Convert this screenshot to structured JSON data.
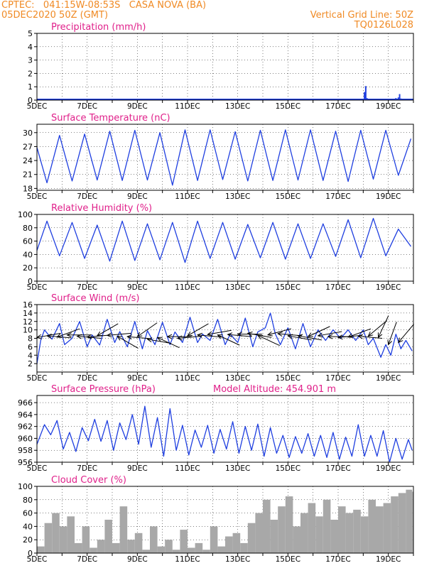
{
  "header": {
    "line1_left": "CPTEC:   041:15W-08:53S   CASA NOVA (BA)",
    "line2_left": "05DEC2020 50Z (GMT)",
    "line1_right": "Vertical Grid Line: 50Z",
    "line2_right": "TQ0126L028"
  },
  "colors": {
    "header": "#f08a24",
    "title": "#e0208a",
    "series": "#1f3fe0",
    "cloud": "#a8a8a8",
    "wind_arrow": "#000000",
    "grid": "#000000"
  },
  "chart_data": [
    {
      "type": "bar",
      "title": "Precipitation (mm/h)",
      "xlabel": "",
      "ylabel": "",
      "ylim": [
        0,
        5
      ],
      "yticks": [
        0,
        1,
        2,
        3,
        4,
        5
      ],
      "xlim": [
        5,
        20
      ],
      "xticks": [
        "5DEC",
        "7DEC",
        "9DEC",
        "11DEC",
        "13DEC",
        "15DEC",
        "17DEC",
        "19DEC"
      ],
      "x": [
        17.2,
        17.5,
        17.8,
        18.0,
        18.05,
        18.1,
        18.15,
        18.8,
        19.1,
        19.3,
        19.4,
        19.45,
        19.5,
        19.55
      ],
      "values": [
        0.03,
        0.05,
        0.05,
        0.08,
        0.6,
        1.05,
        0.15,
        0.05,
        0.1,
        0.15,
        0.2,
        0.45,
        0.12,
        0.05
      ],
      "grid": true
    },
    {
      "type": "line",
      "title": "Surface Temperature (nC)",
      "xlabel": "",
      "ylabel": "",
      "ylim": [
        17.6,
        31.8
      ],
      "yticks": [
        18,
        21,
        24,
        27,
        30
      ],
      "xlim": [
        5,
        20
      ],
      "xticks": [
        "5DEC",
        "7DEC",
        "9DEC",
        "11DEC",
        "13DEC",
        "15DEC",
        "17DEC",
        "19DEC"
      ],
      "x": [
        5.0,
        5.4,
        5.9,
        6.4,
        6.9,
        7.4,
        7.9,
        8.4,
        8.9,
        9.4,
        9.9,
        10.4,
        10.9,
        11.4,
        11.9,
        12.4,
        12.9,
        13.4,
        13.9,
        14.4,
        14.9,
        15.4,
        15.9,
        16.4,
        16.9,
        17.4,
        17.9,
        18.4,
        18.9,
        19.4,
        19.9
      ],
      "values": [
        26.8,
        19.2,
        29.4,
        19.6,
        29.7,
        19.8,
        30.3,
        19.7,
        30.5,
        19.8,
        30.0,
        18.7,
        30.6,
        19.7,
        30.6,
        19.9,
        30.2,
        19.6,
        30.5,
        19.7,
        30.6,
        19.8,
        30.6,
        19.7,
        30.3,
        19.5,
        30.5,
        20.0,
        30.5,
        20.8,
        28.7
      ],
      "grid": true
    },
    {
      "type": "line",
      "title": "Relative Humidity (%)",
      "xlabel": "",
      "ylabel": "",
      "ylim": [
        0,
        100
      ],
      "yticks": [
        0,
        20,
        40,
        60,
        80,
        100
      ],
      "xlim": [
        5,
        20
      ],
      "xticks": [
        "5DEC",
        "7DEC",
        "9DEC",
        "11DEC",
        "13DEC",
        "15DEC",
        "17DEC",
        "19DEC"
      ],
      "x": [
        5.0,
        5.4,
        5.9,
        6.4,
        6.9,
        7.4,
        7.9,
        8.4,
        8.9,
        9.4,
        9.9,
        10.4,
        10.9,
        11.4,
        11.9,
        12.4,
        12.9,
        13.4,
        13.9,
        14.4,
        14.9,
        15.4,
        15.9,
        16.4,
        16.9,
        17.4,
        17.9,
        18.4,
        18.9,
        19.4,
        19.9
      ],
      "values": [
        46,
        90,
        38,
        88,
        34,
        84,
        30,
        90,
        31,
        86,
        32,
        88,
        28,
        90,
        34,
        88,
        33,
        85,
        35,
        88,
        33,
        86,
        34,
        86,
        37,
        92,
        35,
        94,
        38,
        78,
        52
      ],
      "grid": true
    },
    {
      "type": "line",
      "title": "Surface Wind (m/s)",
      "xlabel": "",
      "ylabel": "",
      "ylim": [
        0,
        16
      ],
      "yticks": [
        2,
        4,
        6,
        8,
        10,
        12,
        14,
        16
      ],
      "xlim": [
        5,
        20
      ],
      "xticks": [
        "5DEC",
        "7DEC",
        "9DEC",
        "11DEC",
        "13DEC",
        "15DEC",
        "17DEC",
        "19DEC"
      ],
      "x": [
        5.0,
        5.15,
        5.3,
        5.6,
        5.9,
        6.1,
        6.4,
        6.7,
        7.0,
        7.2,
        7.5,
        7.8,
        8.1,
        8.3,
        8.6,
        8.9,
        9.2,
        9.4,
        9.7,
        10.0,
        10.3,
        10.5,
        10.8,
        11.1,
        11.4,
        11.6,
        11.9,
        12.2,
        12.5,
        12.7,
        13.0,
        13.3,
        13.6,
        13.8,
        14.1,
        14.3,
        14.5,
        14.7,
        15.0,
        15.3,
        15.6,
        15.9,
        16.2,
        16.5,
        16.8,
        17.1,
        17.4,
        17.7,
        18.0,
        18.2,
        18.4,
        18.7,
        18.9,
        19.1,
        19.3,
        19.5,
        19.7,
        19.95
      ],
      "values": [
        2.0,
        7.5,
        10.0,
        7.8,
        11.5,
        6.5,
        8.0,
        12.0,
        6.0,
        8.8,
        6.4,
        12.5,
        7.0,
        9.6,
        6.0,
        12.0,
        5.5,
        9.8,
        6.5,
        11.8,
        6.5,
        9.5,
        7.0,
        13.0,
        7.0,
        9.0,
        7.5,
        12.5,
        6.5,
        9.0,
        7.0,
        12.8,
        6.0,
        9.5,
        10.5,
        14.0,
        9.0,
        6.5,
        10.5,
        5.5,
        11.5,
        6.0,
        10.0,
        7.5,
        10.0,
        8.0,
        10.0,
        7.5,
        10.0,
        6.5,
        8.0,
        3.5,
        6.5,
        4.0,
        9.0,
        5.5,
        7.5,
        5.0
      ],
      "arrows_x": [
        5.0,
        5.4,
        5.8,
        6.2,
        6.6,
        7.0,
        7.4,
        7.8,
        8.2,
        8.6,
        9.0,
        9.4,
        9.8,
        10.2,
        10.6,
        11.0,
        11.4,
        11.8,
        12.2,
        12.6,
        13.0,
        13.4,
        13.8,
        14.2,
        14.6,
        15.0,
        15.4,
        15.8,
        16.2,
        16.6,
        17.0,
        17.4,
        17.8,
        18.2,
        18.6,
        19.0,
        19.4
      ],
      "arrows_speed": [
        8.2,
        8.6,
        8.3,
        8.8,
        8.5,
        8.3,
        8.6,
        8.7,
        8.5,
        8.4,
        8.4,
        7.8,
        8.2,
        8.4,
        8.0,
        8.6,
        8.8,
        8.9,
        8.8,
        8.9,
        9.0,
        9.2,
        8.7,
        8.8,
        9.1,
        8.6,
        8.6,
        8.4,
        8.6,
        8.4,
        8.2,
        8.3,
        8.5,
        8.5,
        8.2,
        6.5,
        7.0
      ],
      "arrows_dir": [
        80,
        95,
        70,
        90,
        95,
        85,
        60,
        85,
        120,
        95,
        55,
        100,
        115,
        90,
        85,
        60,
        95,
        80,
        115,
        95,
        90,
        100,
        115,
        75,
        95,
        100,
        100,
        65,
        80,
        90,
        85,
        70,
        95,
        50,
        25,
        20,
        40
      ],
      "grid": true
    },
    {
      "type": "line",
      "title": "Surface Pressure (hPa)",
      "subtitle": "Model Altitude: 454.901 m",
      "xlabel": "",
      "ylabel": "",
      "ylim": [
        956,
        967.2
      ],
      "yticks": [
        956,
        958,
        960,
        962,
        964,
        966
      ],
      "xlim": [
        5,
        20
      ],
      "xticks": [
        "5DEC",
        "7DEC",
        "9DEC",
        "11DEC",
        "13DEC",
        "15DEC",
        "17DEC",
        "19DEC"
      ],
      "x": [
        5.0,
        5.3,
        5.55,
        5.8,
        6.05,
        6.3,
        6.55,
        6.8,
        7.05,
        7.3,
        7.55,
        7.8,
        8.05,
        8.3,
        8.55,
        8.8,
        9.05,
        9.3,
        9.55,
        9.8,
        10.05,
        10.3,
        10.55,
        10.8,
        11.05,
        11.3,
        11.55,
        11.8,
        12.05,
        12.3,
        12.55,
        12.8,
        13.05,
        13.3,
        13.55,
        13.8,
        14.05,
        14.3,
        14.55,
        14.8,
        15.05,
        15.3,
        15.55,
        15.8,
        16.05,
        16.3,
        16.55,
        16.8,
        17.05,
        17.3,
        17.55,
        17.8,
        18.05,
        18.3,
        18.55,
        18.8,
        19.05,
        19.3,
        19.55,
        19.8,
        19.95
      ],
      "values": [
        959.0,
        962.3,
        960.6,
        963.0,
        958.2,
        961.0,
        957.8,
        961.8,
        959.6,
        963.2,
        959.5,
        963.0,
        958.0,
        962.6,
        959.8,
        964.0,
        959.0,
        965.4,
        958.5,
        963.5,
        957.0,
        965.0,
        958.0,
        962.2,
        957.2,
        961.4,
        958.5,
        962.2,
        957.5,
        961.5,
        958.2,
        962.8,
        957.5,
        962.0,
        958.0,
        962.4,
        957.0,
        961.8,
        957.5,
        960.5,
        956.8,
        960.3,
        957.5,
        960.8,
        957.0,
        960.5,
        956.8,
        961.0,
        956.5,
        960.2,
        957.0,
        962.3,
        957.0,
        960.5,
        957.0,
        961.3,
        956.0,
        960.0,
        956.5,
        959.8,
        958.0
      ],
      "grid": true
    },
    {
      "type": "area",
      "title": "Cloud Cover (%)",
      "xlabel": "",
      "ylabel": "",
      "ylim": [
        0,
        100
      ],
      "yticks": [
        0,
        20,
        40,
        60,
        80,
        100
      ],
      "xlim": [
        5,
        20
      ],
      "xticks": [
        "5DEC",
        "7DEC",
        "9DEC",
        "11DEC",
        "13DEC",
        "15DEC",
        "17DEC",
        "19DEC"
      ],
      "x": [
        5.0,
        5.3,
        5.6,
        5.9,
        6.2,
        6.5,
        6.8,
        7.1,
        7.4,
        7.7,
        8.0,
        8.3,
        8.6,
        8.9,
        9.2,
        9.5,
        9.8,
        10.1,
        10.4,
        10.7,
        11.0,
        11.3,
        11.6,
        11.9,
        12.2,
        12.5,
        12.8,
        13.1,
        13.4,
        13.7,
        14.0,
        14.3,
        14.6,
        14.9,
        15.2,
        15.5,
        15.8,
        16.1,
        16.4,
        16.7,
        17.0,
        17.3,
        17.6,
        17.9,
        18.2,
        18.5,
        18.8,
        19.1,
        19.4,
        19.7,
        19.95
      ],
      "values": [
        10,
        45,
        60,
        40,
        55,
        15,
        40,
        8,
        20,
        50,
        15,
        70,
        20,
        30,
        5,
        40,
        10,
        20,
        5,
        35,
        8,
        15,
        5,
        40,
        10,
        25,
        30,
        15,
        45,
        60,
        80,
        50,
        70,
        85,
        40,
        60,
        75,
        55,
        80,
        50,
        70,
        60,
        65,
        55,
        80,
        70,
        75,
        85,
        90,
        95,
        92
      ],
      "grid": true
    }
  ]
}
